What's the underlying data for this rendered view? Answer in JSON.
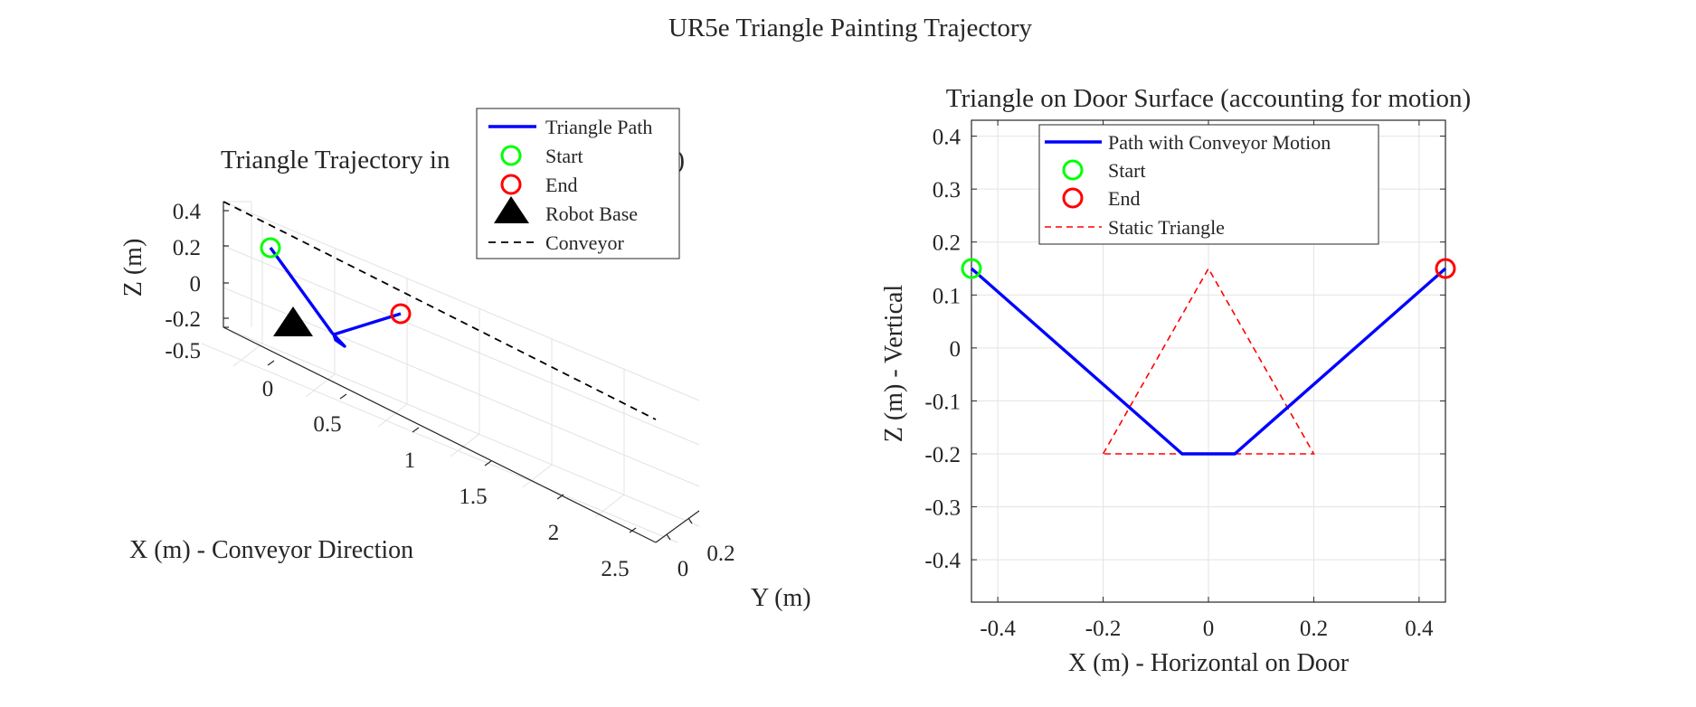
{
  "figure": {
    "title": "UR5e Triangle Painting Trajectory"
  },
  "chart_data": [
    {
      "type": "line",
      "title": "Triangle Trajectory in 3D Space",
      "title_visible": "Triangle Trajectory in",
      "title_visible_tail": "e)",
      "xlabel": "X (m) - Conveyor Direction",
      "ylabel": "Y (m)",
      "zlabel": "Z (m)",
      "xticks": [
        "0",
        "0.5",
        "1",
        "1.5",
        "2",
        "2.5"
      ],
      "yticks": [
        "0",
        "0.2"
      ],
      "zticks": [
        "0.4",
        "0.2",
        "0",
        "-0.2",
        "-0.5"
      ],
      "xlim": [
        -0.2,
        2.8
      ],
      "ylim": [
        -0.1,
        0.3
      ],
      "zlim": [
        -0.5,
        0.4
      ],
      "grid": true,
      "legend_placement": "top-right (overlapping title)",
      "series": [
        {
          "name": "Triangle Path",
          "color": "#0000ff",
          "style": "solid",
          "x": [
            0.0,
            0.23,
            0.28,
            0.55
          ],
          "y": [
            0.05,
            0.05,
            0.05,
            0.05
          ],
          "z": [
            0.15,
            -0.2,
            -0.2,
            0.15
          ]
        },
        {
          "name": "Start",
          "color": "#00ff00",
          "marker": "circle",
          "x": [
            0.0
          ],
          "y": [
            0.05
          ],
          "z": [
            0.15
          ]
        },
        {
          "name": "End",
          "color": "#ff0000",
          "marker": "circle",
          "x": [
            0.55
          ],
          "y": [
            0.05
          ],
          "z": [
            0.15
          ]
        },
        {
          "name": "Robot Base",
          "color": "#000000",
          "marker": "triangle",
          "x": [
            0.0
          ],
          "y": [
            0.0
          ],
          "z": [
            -0.35
          ]
        },
        {
          "name": "Conveyor",
          "color": "#000000",
          "style": "dashed",
          "x": [
            -0.2,
            2.8
          ],
          "y": [
            0.3,
            0.3
          ],
          "z": [
            0.4,
            0.4
          ]
        }
      ]
    },
    {
      "type": "line",
      "title": "Triangle on Door Surface (accounting for motion)",
      "xlabel": "X (m) - Horizontal on Door",
      "ylabel": "Z (m) - Vertical",
      "xlim": [
        -0.45,
        0.45
      ],
      "ylim": [
        -0.48,
        0.43
      ],
      "xticks": [
        -0.4,
        -0.2,
        0,
        0.2,
        0.4
      ],
      "xtick_labels": [
        "-0.4",
        "-0.2",
        "0",
        "0.2",
        "0.4"
      ],
      "yticks": [
        0.4,
        0.3,
        0.2,
        0.1,
        0,
        -0.1,
        -0.2,
        -0.3,
        -0.4
      ],
      "ytick_labels": [
        "0.4",
        "0.3",
        "0.2",
        "0.1",
        "0",
        "-0.1",
        "-0.2",
        "-0.3",
        "-0.4"
      ],
      "grid": true,
      "legend_placement": "top-center",
      "series": [
        {
          "name": "Path with Conveyor Motion",
          "color": "#0000ff",
          "style": "solid",
          "x": [
            -0.45,
            -0.05,
            0.05,
            -0.05,
            0.05,
            0.45
          ],
          "y": [
            0.15,
            -0.2,
            -0.2,
            -0.2,
            -0.2,
            0.15
          ]
        },
        {
          "name": "Start",
          "color": "#00ff00",
          "marker": "circle",
          "x": [
            -0.45
          ],
          "y": [
            0.15
          ]
        },
        {
          "name": "End",
          "color": "#ff0000",
          "marker": "circle",
          "x": [
            0.45
          ],
          "y": [
            0.15
          ]
        },
        {
          "name": "Static Triangle",
          "color": "#ff0000",
          "style": "dashed",
          "x": [
            -0.2,
            0.0,
            0.2,
            -0.2
          ],
          "y": [
            -0.2,
            0.15,
            -0.2,
            -0.2
          ]
        }
      ]
    }
  ]
}
